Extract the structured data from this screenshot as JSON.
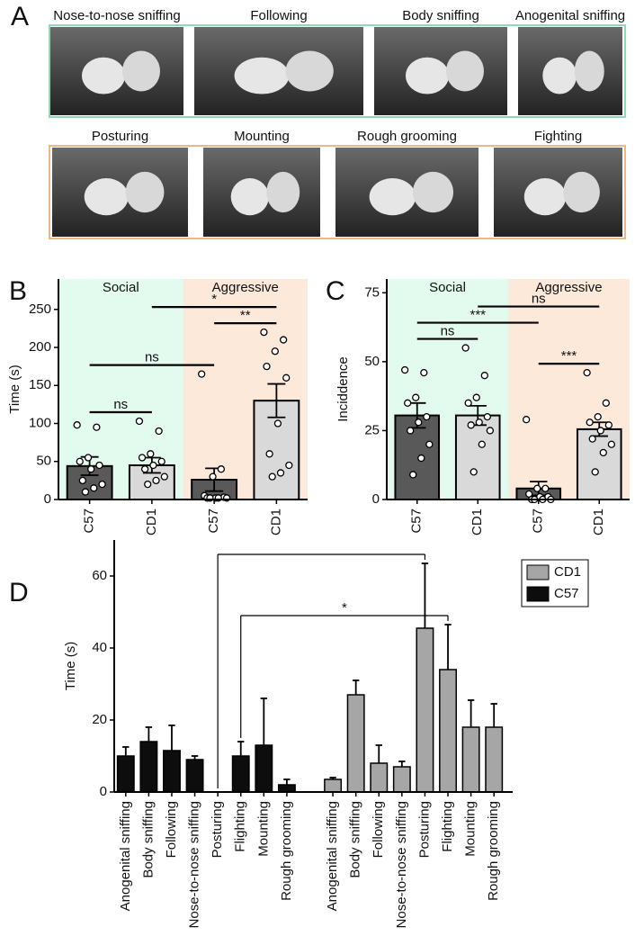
{
  "panel_a": {
    "label": "A",
    "rows": [
      {
        "photos": [
          "Nose-to-nose sniffing",
          "Following",
          "Body sniffing",
          "Anogenital sniffing"
        ]
      },
      {
        "photos": [
          "Posturing",
          "Mounting",
          "Rough grooming",
          "Fighting"
        ]
      }
    ]
  },
  "chart_data": [
    {
      "type": "bar",
      "label": "B",
      "y_label": "Time (s)",
      "categories": [
        "C57",
        "CD1",
        "C57",
        "CD1"
      ],
      "values": [
        44,
        45,
        26,
        130
      ],
      "errors": [
        12,
        10,
        15,
        22
      ],
      "colors": [
        "#595959",
        "#d9d9d9",
        "#595959",
        "#d9d9d9"
      ],
      "points": [
        [
          98,
          95,
          55,
          50,
          45,
          40,
          25,
          20,
          15,
          10
        ],
        [
          103,
          90,
          60,
          55,
          50,
          45,
          40,
          30,
          25,
          20
        ],
        [
          165,
          40,
          30,
          5,
          3,
          2,
          2,
          2,
          2,
          2
        ],
        [
          220,
          210,
          195,
          175,
          160,
          100,
          60,
          45,
          35,
          30
        ]
      ],
      "regions": [
        {
          "label": "Social",
          "from": 0,
          "to": 1,
          "color": "#e3fbef"
        },
        {
          "label": "Aggressive",
          "from": 2,
          "to": 3,
          "color": "#fde9da"
        }
      ],
      "annotations": [
        {
          "text": "ns",
          "from": 0,
          "to": 1
        },
        {
          "text": "ns",
          "from": 0,
          "to": 2
        },
        {
          "text": "**",
          "from": 2,
          "to": 3
        },
        {
          "text": "*",
          "from": 1,
          "to": 3
        }
      ],
      "ylim": [
        0,
        290
      ],
      "yticks": [
        0,
        50,
        100,
        150,
        200,
        250
      ]
    },
    {
      "type": "bar",
      "label": "C",
      "y_label": "Inciddence",
      "categories": [
        "C57",
        "CD1",
        "C57",
        "CD1"
      ],
      "values": [
        30.5,
        30.5,
        4,
        25.5
      ],
      "errors": [
        4.5,
        3.5,
        2.5,
        2.5
      ],
      "colors": [
        "#595959",
        "#d9d9d9",
        "#595959",
        "#d9d9d9"
      ],
      "points": [
        [
          47,
          46,
          37,
          35,
          30,
          28,
          25,
          20,
          15,
          9
        ],
        [
          55,
          45,
          37,
          35,
          30,
          28,
          27,
          25,
          20,
          10
        ],
        [
          29,
          4,
          4,
          2,
          1,
          1,
          0,
          0,
          0,
          0
        ],
        [
          46,
          35,
          30,
          28,
          27,
          25,
          22,
          20,
          17,
          10
        ]
      ],
      "regions": [
        {
          "label": "Social",
          "from": 0,
          "to": 1,
          "color": "#e3fbef"
        },
        {
          "label": "Aggressive",
          "from": 2,
          "to": 3,
          "color": "#fde9da"
        }
      ],
      "annotations": [
        {
          "text": "ns",
          "from": 0,
          "to": 1
        },
        {
          "text": "***",
          "from": 2,
          "to": 3
        },
        {
          "text": "***",
          "from": 0,
          "to": 2
        },
        {
          "text": "ns",
          "from": 1,
          "to": 3
        }
      ],
      "ylim": [
        0,
        80
      ],
      "yticks": [
        0,
        25,
        50,
        75
      ]
    },
    {
      "type": "bar",
      "label": "D",
      "y_label": "Time (s)",
      "categories": [
        "Anogenital sniffing",
        "Body sniffing",
        "Following",
        "Nose-to-nose sniffing",
        "Posturing",
        "Flighting",
        "Mounting",
        "Rough grooming",
        "Anogenital sniffing",
        "Body sniffing",
        "Following",
        "Nose-to-nose sniffing",
        "Posturing",
        "Flighting",
        "Mounting",
        "Rough grooming"
      ],
      "series": [
        {
          "name": "CD1",
          "color": "#a6a6a6",
          "values": [
            null,
            null,
            null,
            null,
            null,
            null,
            null,
            null,
            3.5,
            27,
            8,
            7,
            45.5,
            34,
            18,
            18
          ],
          "errors": [
            null,
            null,
            null,
            null,
            null,
            null,
            null,
            null,
            0.5,
            4,
            5,
            1.5,
            18,
            12.5,
            7.5,
            6.5
          ]
        },
        {
          "name": "C57",
          "color": "#0d0d0d",
          "values": [
            10,
            14,
            11.5,
            9,
            0,
            10,
            13,
            2,
            null,
            null,
            null,
            null,
            null,
            null,
            null,
            null
          ],
          "errors": [
            2.5,
            4,
            7,
            1,
            0,
            4,
            13,
            1.5,
            null,
            null,
            null,
            null,
            null,
            null,
            null,
            null
          ]
        }
      ],
      "annotations": [
        {
          "text": "*",
          "from": 5,
          "to": 13
        },
        {
          "from": 4,
          "to": 12
        }
      ],
      "legend": "upper right",
      "ylim": [
        0,
        70
      ],
      "yticks": [
        0,
        20,
        40,
        60
      ]
    }
  ]
}
